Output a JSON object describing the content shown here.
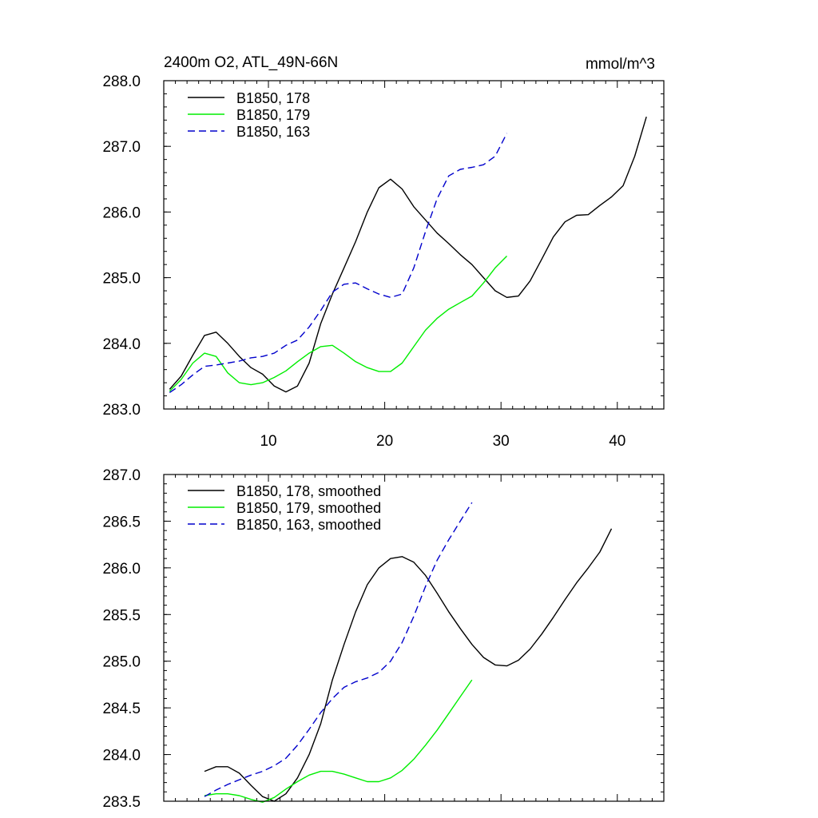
{
  "figure": {
    "title_left": "2400m O2, ATL_49N-66N",
    "title_right": "mmol/m^3"
  },
  "chart_data": [
    {
      "type": "line",
      "title": "2400m O2, ATL_49N-66N",
      "units": "mmol/m^3",
      "xlabel": "",
      "ylabel": "",
      "xlim": [
        1,
        44
      ],
      "ylim": [
        283.0,
        288.0
      ],
      "x_ticks": [
        10,
        20,
        30,
        40
      ],
      "x_tick_labels": [
        "10",
        "20",
        "30",
        "40"
      ],
      "y_ticks": [
        283.0,
        284.0,
        285.0,
        286.0,
        287.0,
        288.0
      ],
      "y_tick_labels": [
        "283.0",
        "284.0",
        "285.0",
        "286.0",
        "287.0",
        "288.0"
      ],
      "grid": false,
      "legend_position": "top-left",
      "series": [
        {
          "name": "B1850, 178",
          "color": "#000000",
          "dash": "solid",
          "x": [
            1.5,
            2.5,
            3.5,
            4.5,
            5.5,
            6.5,
            7.5,
            8.5,
            9.5,
            10.5,
            11.5,
            12.5,
            13.5,
            14.5,
            15.5,
            16.5,
            17.5,
            18.5,
            19.5,
            20.5,
            21.5,
            22.5,
            23.5,
            24.5,
            25.5,
            26.5,
            27.5,
            28.5,
            29.5,
            30.5,
            31.5,
            32.5,
            33.5,
            34.5,
            35.5,
            36.5,
            37.5,
            38.5,
            39.5,
            40.5,
            41.5,
            42.5
          ],
          "y": [
            283.3,
            283.5,
            283.82,
            284.12,
            284.17,
            284.0,
            283.8,
            283.63,
            283.53,
            283.35,
            283.26,
            283.35,
            283.7,
            284.3,
            284.75,
            285.15,
            285.55,
            286.0,
            286.37,
            286.5,
            286.35,
            286.08,
            285.88,
            285.68,
            285.52,
            285.35,
            285.2,
            285.0,
            284.8,
            284.7,
            284.72,
            284.95,
            285.28,
            285.62,
            285.85,
            285.95,
            285.96,
            286.1,
            286.23,
            286.4,
            286.85,
            287.45
          ]
        },
        {
          "name": "B1850, 179",
          "color": "#00ee00",
          "dash": "solid",
          "x": [
            1.5,
            2.5,
            3.5,
            4.5,
            5.5,
            6.5,
            7.5,
            8.5,
            9.5,
            10.5,
            11.5,
            12.5,
            13.5,
            14.5,
            15.5,
            16.5,
            17.5,
            18.5,
            19.5,
            20.5,
            21.5,
            22.5,
            23.5,
            24.5,
            25.5,
            26.5,
            27.5,
            28.5,
            29.5,
            30.5
          ],
          "y": [
            283.27,
            283.45,
            283.7,
            283.85,
            283.8,
            283.55,
            283.4,
            283.37,
            283.4,
            283.48,
            283.58,
            283.72,
            283.85,
            283.95,
            283.97,
            283.85,
            283.72,
            283.63,
            283.57,
            283.57,
            283.7,
            283.95,
            284.2,
            284.38,
            284.52,
            284.62,
            284.72,
            284.92,
            285.15,
            285.33
          ]
        },
        {
          "name": "B1850, 163",
          "color": "#0000cc",
          "dash": "dashed",
          "x": [
            1.5,
            2.5,
            3.5,
            4.5,
            5.5,
            6.5,
            7.5,
            8.5,
            9.5,
            10.5,
            11.5,
            12.5,
            13.5,
            14.5,
            15.5,
            16.5,
            17.5,
            18.5,
            19.5,
            20.5,
            21.5,
            22.5,
            23.5,
            24.5,
            25.5,
            26.5,
            27.5,
            28.5,
            29.5,
            30.5
          ],
          "y": [
            283.25,
            283.37,
            283.52,
            283.65,
            283.67,
            283.7,
            283.73,
            283.78,
            283.8,
            283.85,
            283.97,
            284.05,
            284.25,
            284.5,
            284.78,
            284.9,
            284.92,
            284.83,
            284.75,
            284.7,
            284.75,
            285.15,
            285.7,
            286.2,
            286.55,
            286.65,
            286.68,
            286.72,
            286.85,
            287.2
          ]
        }
      ]
    },
    {
      "type": "line",
      "title": "",
      "xlabel": "",
      "ylabel": "",
      "xlim": [
        1,
        44
      ],
      "ylim": [
        283.5,
        287.0
      ],
      "x_ticks": [
        10,
        20,
        30,
        40
      ],
      "x_tick_labels": [],
      "y_ticks": [
        283.5,
        284.0,
        284.5,
        285.0,
        285.5,
        286.0,
        286.5,
        287.0
      ],
      "y_tick_labels": [
        "283.5",
        "284.0",
        "284.5",
        "285.0",
        "285.5",
        "286.0",
        "286.5",
        "287.0"
      ],
      "grid": false,
      "legend_position": "top-left",
      "series": [
        {
          "name": "B1850, 178, smoothed",
          "color": "#000000",
          "dash": "solid",
          "x": [
            4.5,
            5.5,
            6.5,
            7.5,
            8.5,
            9.5,
            10.5,
            11.5,
            12.5,
            13.5,
            14.5,
            15.5,
            16.5,
            17.5,
            18.5,
            19.5,
            20.5,
            21.5,
            22.5,
            23.5,
            24.5,
            25.5,
            26.5,
            27.5,
            28.5,
            29.5,
            30.5,
            31.5,
            32.5,
            33.5,
            34.5,
            35.5,
            36.5,
            37.5,
            38.5,
            39.5
          ],
          "y": [
            283.82,
            283.87,
            283.87,
            283.8,
            283.67,
            283.55,
            283.5,
            283.58,
            283.75,
            284.0,
            284.33,
            284.8,
            285.18,
            285.53,
            285.82,
            286.0,
            286.1,
            286.12,
            286.06,
            285.92,
            285.73,
            285.53,
            285.35,
            285.18,
            285.04,
            284.96,
            284.95,
            285.01,
            285.13,
            285.29,
            285.47,
            285.66,
            285.84,
            286.0,
            286.17,
            286.42
          ]
        },
        {
          "name": "B1850, 179, smoothed",
          "color": "#00ee00",
          "dash": "solid",
          "x": [
            4.5,
            5.5,
            6.5,
            7.5,
            8.5,
            9.5,
            10.5,
            11.5,
            12.5,
            13.5,
            14.5,
            15.5,
            16.5,
            17.5,
            18.5,
            19.5,
            20.5,
            21.5,
            22.5,
            23.5,
            24.5,
            25.5,
            26.5,
            27.5
          ],
          "y": [
            283.56,
            283.58,
            283.58,
            283.56,
            283.52,
            283.49,
            283.54,
            283.63,
            283.71,
            283.78,
            283.82,
            283.82,
            283.79,
            283.75,
            283.71,
            283.71,
            283.75,
            283.83,
            283.95,
            284.1,
            284.26,
            284.44,
            284.62,
            284.8
          ]
        },
        {
          "name": "B1850, 163, smoothed",
          "color": "#0000cc",
          "dash": "dashed",
          "x": [
            4.5,
            5.5,
            6.5,
            7.5,
            8.5,
            9.5,
            10.5,
            11.5,
            12.5,
            13.5,
            14.5,
            15.5,
            16.5,
            17.5,
            18.5,
            19.5,
            20.5,
            21.5,
            22.5,
            23.5,
            24.5,
            25.5,
            26.5,
            27.5
          ],
          "y": [
            283.55,
            283.62,
            283.68,
            283.73,
            283.78,
            283.82,
            283.88,
            283.96,
            284.1,
            284.27,
            284.45,
            284.6,
            284.72,
            284.78,
            284.82,
            284.88,
            285.0,
            285.2,
            285.48,
            285.8,
            286.08,
            286.3,
            286.5,
            286.7
          ]
        }
      ]
    }
  ]
}
